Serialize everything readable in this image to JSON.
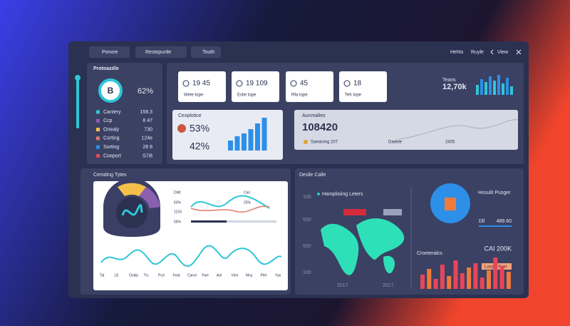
{
  "toolbar": {
    "buttons": [
      "Ponore",
      "Restopurde",
      "Touth"
    ],
    "links": [
      "Hehts",
      "Ruyle",
      "View"
    ]
  },
  "summary_panel": {
    "title": "Protoazdle",
    "badge": "B",
    "percent": "62%",
    "rows": [
      {
        "label": "Cantery",
        "value": "159.3"
      },
      {
        "label": "Ccp",
        "value": "8 47"
      },
      {
        "label": "Onealy",
        "value": "730"
      },
      {
        "label": "Corting",
        "value": "124e"
      },
      {
        "label": "Sorting",
        "value": "28 8"
      },
      {
        "label": "Coeport",
        "value": "S7i8"
      }
    ]
  },
  "stats": {
    "cards": [
      {
        "value": "19 45",
        "label": "Wete tope"
      },
      {
        "value": "19 109",
        "label": "Eslie tope"
      },
      {
        "value": "45",
        "label": "Rfa tope"
      },
      {
        "value": "18",
        "label": "Teh tope"
      }
    ],
    "trend_label": "Teans",
    "trend_value": "12,70k",
    "trend_bars": [
      14,
      22,
      18,
      26,
      20,
      28,
      16,
      24,
      12
    ]
  },
  "exploration": {
    "title": "Cexplotice",
    "primary": "53%",
    "secondary": "42%",
    "bars": [
      14,
      20,
      24,
      30,
      38,
      46
    ]
  },
  "anomalies": {
    "title": "Aunmalies",
    "total": "108420",
    "items": [
      "Saeaising 207",
      "Daeble",
      "2405"
    ]
  },
  "trending": {
    "title": "Cemding Tytes",
    "legend": [
      "DWt",
      "Ceri",
      "53%",
      "1216",
      "25%",
      "65%"
    ],
    "axis": [
      "Tal",
      "LE",
      "Ooldy",
      "Trs",
      "Pcd",
      "Feat",
      "Carve",
      "Fwe",
      "Anl",
      "Vlve",
      "Moy",
      "Plet",
      "Yas"
    ]
  },
  "world": {
    "title": "Deslie Calle",
    "subtitle": "Hamplisiing Leters",
    "y_labels": [
      "100",
      "500",
      "500",
      "100"
    ],
    "x_labels": [
      "2017",
      "2017"
    ],
    "card_title": "Hosulit Pusger",
    "card_label": "Dll",
    "card_value": "489.60",
    "chart_title": "Croeteralcs",
    "chart_value": "CAI 200K",
    "chart_note": "Lusplu Fuel",
    "bars": [
      20,
      28,
      14,
      34,
      18,
      40,
      22,
      30,
      36,
      16,
      26,
      44,
      32,
      24
    ]
  }
}
